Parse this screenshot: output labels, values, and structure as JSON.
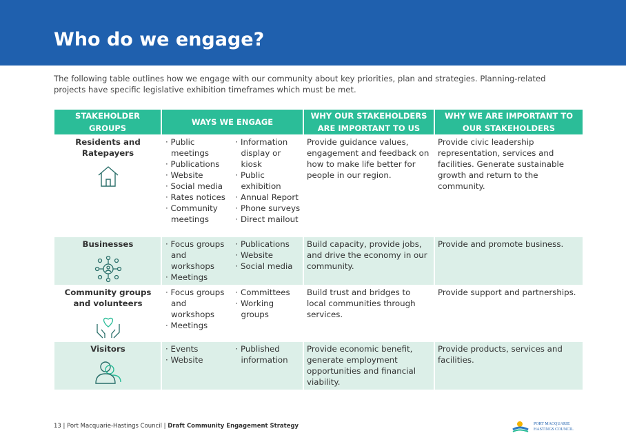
{
  "header": {
    "title": "Who do we engage?"
  },
  "intro": "The following table outlines how we engage with our community about key priorities, plan and strategies. Planning-related projects have specific legislative exhibition timeframes which must be met.",
  "table": {
    "columns": [
      "STAKEHOLDER GROUPS",
      "WAYS WE ENGAGE",
      "WHY OUR STAKEHOLDERS ARE IMPORTANT TO US",
      "WHY WE ARE IMPORTANT TO OUR STAKEHOLDERS"
    ],
    "rows": [
      {
        "group": "Residents and Ratepayers",
        "ways": [
          "Public meetings",
          "Publications",
          "Website",
          "Social media",
          "Rates notices",
          "Community meetings",
          "Information display or kiosk",
          "Public exhibition",
          "Annual Report",
          "Phone surveys",
          "Direct mailout"
        ],
        "why_us": "Provide guidance values, engagement and feedback on how to make life better for people in our region.",
        "why_them": "Provide civic leadership representation, services and facilities. Generate sustainable growth and return to the community."
      },
      {
        "group": "Businesses",
        "ways": [
          "Focus groups and workshops",
          "Meetings",
          "Publications",
          "Website",
          "Social media"
        ],
        "why_us": "Build capacity, provide jobs, and drive the economy in our community.",
        "why_them": "Provide and promote business."
      },
      {
        "group": "Community groups and volunteers",
        "ways": [
          "Focus groups and workshops",
          "Meetings",
          "Committees",
          "Working groups"
        ],
        "why_us": "Build trust and bridges to local communities through services.",
        "why_them": "Provide support and partnerships."
      },
      {
        "group": "Visitors",
        "ways": [
          "Events",
          "Website",
          "Published information"
        ],
        "why_us": "Provide economic benefit, generate employment opportunities and financial viability.",
        "why_them": "Provide products, services and facilities."
      }
    ]
  },
  "footer": {
    "page": "13",
    "org": "| Port Macquarie-Hastings Council |",
    "doc": "Draft Community Engagement Strategy",
    "logo_line1": "PORT MACQUARIE",
    "logo_line2": "HASTINGS COUNCIL"
  }
}
